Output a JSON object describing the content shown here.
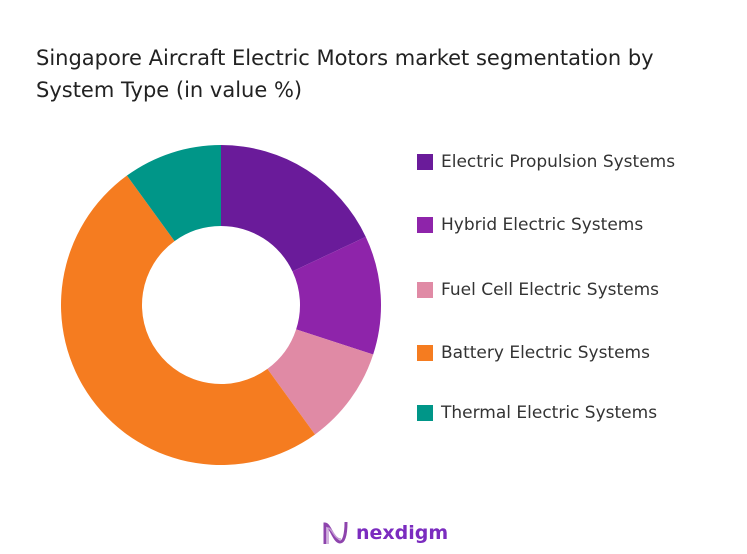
{
  "chart_data": {
    "type": "pie",
    "variant": "donut",
    "title": "Singapore Aircraft Electric Motors market segmentation by System Type (in value %)",
    "categories": [
      "Electric Propulsion Systems",
      "Hybrid Electric Systems",
      "Fuel Cell Electric Systems",
      "Battery Electric Systems",
      "Thermal Electric Systems"
    ],
    "values": [
      18,
      12,
      10,
      50,
      10
    ],
    "colors": [
      "#6a1b9a",
      "#8e24aa",
      "#e08aa5",
      "#f57c20",
      "#009688"
    ],
    "legend_position": "right"
  },
  "logo": {
    "text": "nexdigm",
    "color": "#7b2cbf"
  }
}
